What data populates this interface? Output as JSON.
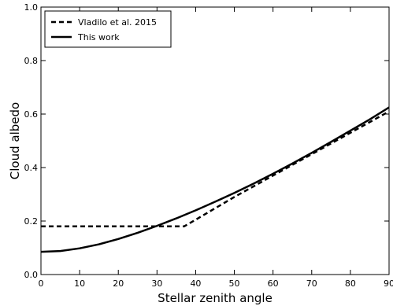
{
  "chart_data": {
    "type": "line",
    "title": "",
    "xlabel": "Stellar zenith angle",
    "ylabel": "Cloud albedo",
    "xlim": [
      0,
      90
    ],
    "ylim": [
      0.0,
      1.0
    ],
    "xticks": [
      "0",
      "10",
      "20",
      "30",
      "40",
      "50",
      "60",
      "70",
      "80",
      "90"
    ],
    "yticks": [
      "0.0",
      "0.2",
      "0.4",
      "0.6",
      "0.8",
      "1.0"
    ],
    "grid": false,
    "legend_position": "top-left",
    "series": [
      {
        "name": "Vladilo et al. 2015",
        "style": "dashed",
        "color": "#000000",
        "x": [
          0,
          10,
          20,
          30,
          37,
          40,
          50,
          60,
          70,
          80,
          90
        ],
        "y": [
          0.18,
          0.18,
          0.18,
          0.18,
          0.18,
          0.205,
          0.29,
          0.37,
          0.45,
          0.53,
          0.61
        ]
      },
      {
        "name": "This work",
        "style": "solid",
        "color": "#000000",
        "x": [
          0,
          5,
          10,
          15,
          20,
          25,
          30,
          35,
          40,
          45,
          50,
          55,
          60,
          65,
          70,
          75,
          80,
          85,
          90
        ],
        "y": [
          0.085,
          0.088,
          0.098,
          0.113,
          0.133,
          0.156,
          0.182,
          0.21,
          0.24,
          0.272,
          0.305,
          0.34,
          0.377,
          0.415,
          0.455,
          0.496,
          0.538,
          0.58,
          0.625
        ]
      }
    ]
  }
}
